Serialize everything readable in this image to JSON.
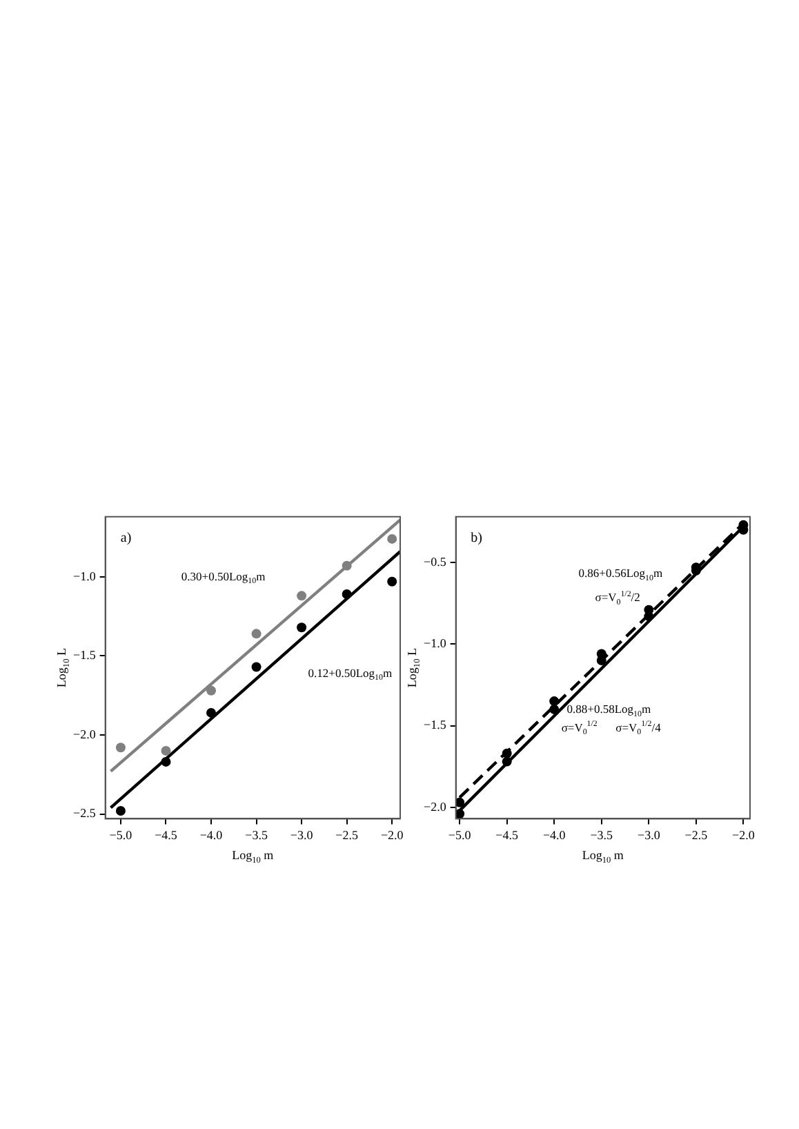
{
  "chart_data": [
    {
      "type": "scatter",
      "xlabel": "Log$_{10}$ m",
      "ylabel": "Log$_{10}$ L",
      "xlim": [
        -5.17,
        -1.91
      ],
      "ylim": [
        -2.53,
        -0.62
      ],
      "xticks": [
        {
          "value": -5,
          "label": "−5.0"
        },
        {
          "value": -4.5,
          "label": "−4.5"
        },
        {
          "value": -4,
          "label": "−4.0"
        },
        {
          "value": -3.5,
          "label": "−3.5"
        },
        {
          "value": -3,
          "label": "−3.0"
        },
        {
          "value": -2.5,
          "label": "−2.5"
        },
        {
          "value": -2,
          "label": "−2.0"
        }
      ],
      "yticks": [
        {
          "value": -2.5,
          "label": "−2.5"
        },
        {
          "value": -2,
          "label": "−2.0"
        },
        {
          "value": -1.5,
          "label": "−1.5"
        },
        {
          "value": -1,
          "label": "−1.0"
        }
      ],
      "series": [
        {
          "type": "scatter",
          "marker": "circle",
          "color": "#808080",
          "x": [
            -5,
            -4.5,
            -4,
            -3.5,
            -3,
            -2.5,
            -2
          ],
          "values": [
            -2.08,
            -2.1,
            -1.72,
            -1.36,
            -1.12,
            -0.93,
            -0.76
          ]
        },
        {
          "type": "scatter",
          "marker": "circle",
          "color": "#000000",
          "x": [
            -5,
            -4.5,
            -4,
            -3.5,
            -3,
            -2.5,
            -2
          ],
          "values": [
            -2.48,
            -2.17,
            -1.86,
            -1.57,
            -1.32,
            -1.11,
            -1.03
          ]
        },
        {
          "type": "line",
          "color": "#808080",
          "x": [
            -5.11,
            -1.91
          ],
          "values": [
            -2.23,
            -0.64
          ]
        },
        {
          "type": "line",
          "color": "#000000",
          "x": [
            -5.11,
            -1.91
          ],
          "values": [
            -2.46,
            -0.84
          ]
        }
      ],
      "annotations": [
        "a)",
        "0.30+0.50Log$_{10}$m",
        "0.12+0.50Log$_{10}$m"
      ]
    },
    {
      "type": "scatter",
      "xlabel": "Log$_{10}$ m",
      "ylabel": "Log$_{10}$ L",
      "xlim": [
        -5.04,
        -1.93
      ],
      "ylim": [
        -2.07,
        -0.22
      ],
      "xticks": [
        {
          "value": -5,
          "label": "−5.0"
        },
        {
          "value": -4.5,
          "label": "−4.5"
        },
        {
          "value": -4,
          "label": "−4.0"
        },
        {
          "value": -3.5,
          "label": "−3.5"
        },
        {
          "value": -3,
          "label": "−3.0"
        },
        {
          "value": -2.5,
          "label": "−2.5"
        },
        {
          "value": -2,
          "label": "−2.0"
        }
      ],
      "yticks": [
        {
          "value": -2,
          "label": "−2.0"
        },
        {
          "value": -1.5,
          "label": "−1.5"
        },
        {
          "value": -1,
          "label": "−1.0"
        },
        {
          "value": -0.5,
          "label": "−0.5"
        }
      ],
      "series": [
        {
          "type": "scatter",
          "marker": "circle",
          "color": "#000000",
          "x": [
            -5,
            -4.5,
            -4,
            -3.5,
            -3,
            -2.5,
            -2
          ],
          "values": [
            -1.97,
            -1.67,
            -1.35,
            -1.06,
            -0.79,
            -0.53,
            -0.27
          ]
        },
        {
          "type": "scatter",
          "marker": "circle",
          "color": "#000000",
          "x": [
            -5,
            -4.5,
            -4,
            -3.5,
            -3,
            -2.5,
            -2
          ],
          "values": [
            -2.04,
            -1.72,
            -1.4,
            -1.1,
            -0.83,
            -0.55,
            -0.3
          ]
        },
        {
          "type": "line",
          "color": "#000000",
          "x": [
            -5,
            -2
          ],
          "values": [
            -2.02,
            -0.28
          ]
        },
        {
          "type": "line",
          "color": "#000000",
          "line_style": "dashed",
          "x": [
            -5,
            -2
          ],
          "values": [
            -1.94,
            -0.26
          ]
        }
      ],
      "annotations": [
        "b)",
        "0.86+0.56Log$_{10}$m",
        "σ=V$_{0}$$^{1/2}$/2",
        "0.88+0.58Log$_{10}$m",
        "σ=V$_{0}$$^{1/2}$",
        "σ=V$_{0}$$^{1/2}$/4"
      ]
    }
  ]
}
